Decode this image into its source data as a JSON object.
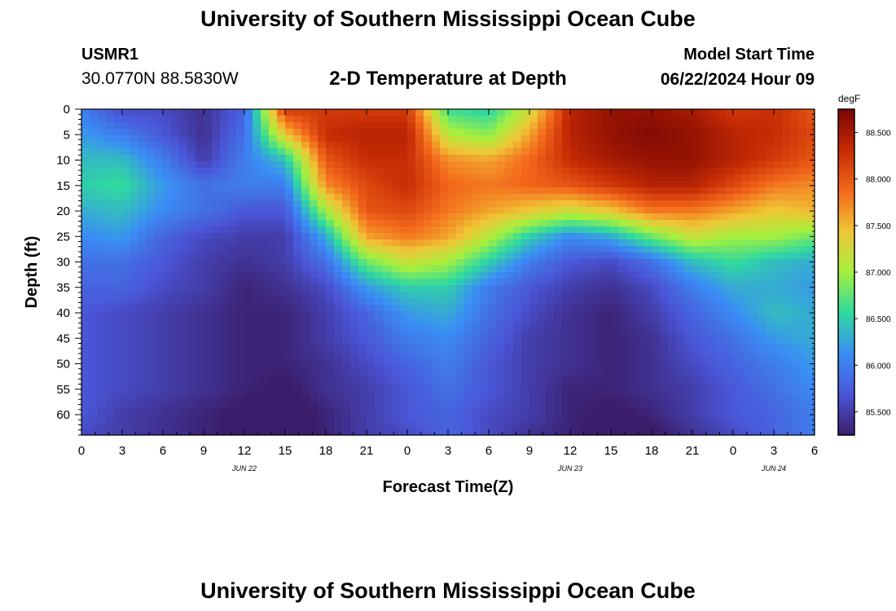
{
  "header": {
    "title": "University of Southern Mississippi Ocean Cube",
    "station_id": "USMR1",
    "coordinates": "30.0770N  88.5830W",
    "subtitle": "2-D Temperature at Depth",
    "model_start_label": "Model Start Time",
    "model_start_value": "06/22/2024 Hour 09"
  },
  "footer": {
    "title": "University of Southern Mississippi Ocean Cube"
  },
  "chart_data": {
    "type": "heatmap",
    "title": "2-D Temperature at Depth",
    "xlabel": "Forecast Time(Z)",
    "ylabel": "Depth (ft)",
    "colorbar_unit": "degF",
    "x_tick_labels": [
      "0",
      "3",
      "6",
      "9",
      "12",
      "15",
      "18",
      "21",
      "0",
      "3",
      "6",
      "9",
      "12",
      "15",
      "18",
      "21",
      "0",
      "3",
      "6"
    ],
    "date_labels": [
      {
        "label": "JUN 22",
        "tick_index": 4
      },
      {
        "label": "JUN 23",
        "tick_index": 12
      },
      {
        "label": "JUN 24",
        "tick_index": 17
      }
    ],
    "y_tick_labels": [
      "0",
      "5",
      "10",
      "15",
      "20",
      "25",
      "30",
      "35",
      "40",
      "45",
      "50",
      "55",
      "60"
    ],
    "ylim": [
      0,
      64
    ],
    "xlim_hours": [
      0,
      54
    ],
    "colorbar_ticks": [
      "88.500",
      "88.000",
      "87.500",
      "87.000",
      "86.500",
      "86.000",
      "85.500"
    ],
    "colorbar_range": [
      85.25,
      88.75
    ],
    "colors": {
      "scale": [
        "#3b1e6b",
        "#4a56d8",
        "#3a8df5",
        "#2fd9a0",
        "#a4f03e",
        "#f0c535",
        "#f3681b",
        "#c52b04",
        "#7a0603"
      ]
    },
    "x_hours": [
      0,
      3,
      6,
      9,
      12,
      15,
      18,
      21,
      24,
      27,
      30,
      33,
      36,
      39,
      42,
      45,
      48,
      51,
      54
    ],
    "depths": [
      0,
      5,
      10,
      15,
      20,
      25,
      30,
      35,
      40,
      45,
      50,
      55,
      60,
      64
    ],
    "temperature": [
      [
        86.0,
        85.6,
        85.6,
        85.4,
        85.8,
        88.2,
        88.2,
        88.2,
        88.2,
        86.6,
        86.5,
        87.2,
        88.4,
        88.6,
        88.6,
        88.5,
        88.2,
        88.3,
        88.0
      ],
      [
        86.2,
        86.0,
        85.7,
        85.4,
        85.9,
        87.4,
        88.3,
        88.4,
        88.4,
        87.1,
        86.9,
        87.6,
        88.4,
        88.6,
        88.7,
        88.6,
        88.4,
        88.3,
        88.1
      ],
      [
        86.4,
        86.4,
        86.0,
        85.5,
        86.0,
        86.4,
        88.0,
        88.3,
        88.3,
        87.7,
        87.6,
        87.9,
        88.3,
        88.5,
        88.6,
        88.6,
        88.4,
        88.2,
        88.0
      ],
      [
        86.5,
        86.6,
        86.2,
        85.9,
        86.0,
        86.0,
        87.7,
        88.1,
        88.3,
        87.9,
        87.8,
        87.9,
        88.0,
        88.2,
        88.4,
        88.4,
        88.1,
        87.8,
        87.7
      ],
      [
        86.3,
        86.4,
        86.1,
        85.9,
        85.7,
        85.7,
        87.0,
        88.0,
        88.1,
        87.8,
        87.6,
        87.4,
        87.2,
        87.4,
        87.8,
        87.8,
        87.6,
        87.4,
        87.5
      ],
      [
        86.1,
        86.2,
        85.8,
        85.6,
        85.5,
        85.5,
        86.3,
        87.6,
        87.8,
        87.6,
        87.1,
        86.5,
        86.1,
        86.3,
        86.8,
        87.2,
        87.0,
        87.0,
        86.8
      ],
      [
        85.9,
        85.9,
        85.7,
        85.5,
        85.4,
        85.5,
        85.9,
        86.8,
        87.2,
        87.0,
        86.5,
        86.0,
        85.7,
        85.6,
        85.9,
        86.4,
        86.6,
        86.4,
        86.3
      ],
      [
        85.8,
        85.8,
        85.6,
        85.5,
        85.3,
        85.4,
        85.6,
        86.2,
        86.5,
        86.5,
        86.0,
        85.7,
        85.5,
        85.4,
        85.6,
        86.0,
        86.3,
        86.3,
        86.2
      ],
      [
        85.7,
        85.6,
        85.5,
        85.4,
        85.3,
        85.3,
        85.5,
        85.8,
        86.2,
        86.3,
        85.9,
        85.6,
        85.4,
        85.3,
        85.5,
        85.8,
        86.1,
        86.4,
        86.3
      ],
      [
        85.7,
        85.6,
        85.5,
        85.4,
        85.3,
        85.3,
        85.5,
        85.7,
        86.0,
        86.1,
        85.8,
        85.5,
        85.4,
        85.3,
        85.4,
        85.7,
        85.9,
        86.2,
        86.3
      ],
      [
        85.7,
        85.6,
        85.5,
        85.4,
        85.3,
        85.3,
        85.4,
        85.6,
        85.8,
        86.0,
        85.7,
        85.5,
        85.4,
        85.3,
        85.4,
        85.6,
        85.8,
        86.0,
        86.2
      ],
      [
        85.7,
        85.6,
        85.5,
        85.4,
        85.3,
        85.2,
        85.4,
        85.5,
        85.7,
        85.9,
        85.7,
        85.5,
        85.3,
        85.3,
        85.4,
        85.5,
        85.7,
        85.9,
        86.1
      ],
      [
        85.7,
        85.5,
        85.4,
        85.3,
        85.2,
        85.1,
        85.3,
        85.5,
        85.7,
        85.8,
        85.6,
        85.5,
        85.3,
        85.2,
        85.3,
        85.5,
        85.7,
        85.8,
        86.0
      ],
      [
        85.6,
        85.5,
        85.4,
        85.3,
        85.2,
        85.0,
        85.3,
        85.5,
        85.6,
        85.8,
        85.6,
        85.4,
        85.3,
        85.1,
        85.2,
        85.4,
        85.6,
        85.8,
        86.0
      ]
    ]
  }
}
